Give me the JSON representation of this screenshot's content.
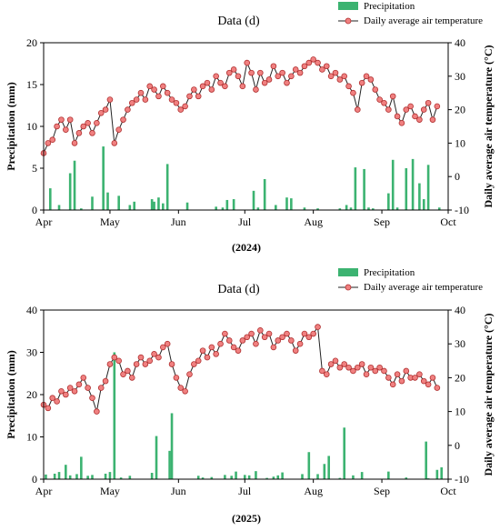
{
  "chart_data": [
    {
      "type": "bar+line",
      "title": "Data (d)",
      "year_caption": "(2024)",
      "ylabel_left": "Precipitation (mm)",
      "ylabel_right": "Daily average air temperature (°C)",
      "legend": [
        "Precipitation",
        "Daily average air temperature"
      ],
      "legend_position": "top-right",
      "x_ticks": [
        "Apr",
        "May",
        "Jun",
        "Jul",
        "Aug",
        "Sep",
        "Oct"
      ],
      "x_range": [
        "2024-04-01",
        "2024-10-01"
      ],
      "ylim_left": [
        0,
        20
      ],
      "yticks_left": [
        0,
        5,
        10,
        15,
        20
      ],
      "ylim_right": [
        -10,
        40
      ],
      "yticks_right": [
        -10,
        0,
        10,
        20,
        30,
        40
      ],
      "colors": {
        "bars": "#3cb371",
        "line": "#222222",
        "marker_fill": "#f08080",
        "marker_edge": "#b03030"
      },
      "precipitation": {
        "x": [
          "2024-04-04",
          "2024-04-08",
          "2024-04-13",
          "2024-04-15",
          "2024-04-18",
          "2024-04-23",
          "2024-04-28",
          "2024-04-30",
          "2024-05-05",
          "2024-05-10",
          "2024-05-12",
          "2024-05-20",
          "2024-05-21",
          "2024-05-23",
          "2024-05-25",
          "2024-05-27",
          "2024-06-05",
          "2024-06-18",
          "2024-06-21",
          "2024-06-23",
          "2024-06-26",
          "2024-07-05",
          "2024-07-07",
          "2024-07-10",
          "2024-07-15",
          "2024-07-20",
          "2024-07-22",
          "2024-07-28",
          "2024-08-03",
          "2024-08-13",
          "2024-08-16",
          "2024-08-18",
          "2024-08-20",
          "2024-08-24",
          "2024-08-26",
          "2024-08-28",
          "2024-09-04",
          "2024-09-06",
          "2024-09-08",
          "2024-09-12",
          "2024-09-15",
          "2024-09-18",
          "2024-09-20",
          "2024-09-22",
          "2024-09-27"
        ],
        "y": [
          2.6,
          0.6,
          4.4,
          5.9,
          0.2,
          1.6,
          7.6,
          2.1,
          1.7,
          0.6,
          1.0,
          1.3,
          1.0,
          1.5,
          0.8,
          5.5,
          0.9,
          0.4,
          0.3,
          1.2,
          1.3,
          2.3,
          0.3,
          3.7,
          0.6,
          1.5,
          1.4,
          0.3,
          0.2,
          0.2,
          0.6,
          0.3,
          5.1,
          4.9,
          0.3,
          0.2,
          2.0,
          6.0,
          0.3,
          5.0,
          6.1,
          3.2,
          1.3,
          5.4,
          0.3
        ]
      },
      "temperature": {
        "x": [
          "2024-04-01",
          "2024-04-03",
          "2024-04-05",
          "2024-04-07",
          "2024-04-09",
          "2024-04-11",
          "2024-04-13",
          "2024-04-15",
          "2024-04-17",
          "2024-04-19",
          "2024-04-21",
          "2024-04-23",
          "2024-04-25",
          "2024-04-27",
          "2024-04-29",
          "2024-05-01",
          "2024-05-03",
          "2024-05-05",
          "2024-05-07",
          "2024-05-09",
          "2024-05-11",
          "2024-05-13",
          "2024-05-15",
          "2024-05-17",
          "2024-05-19",
          "2024-05-21",
          "2024-05-23",
          "2024-05-25",
          "2024-05-27",
          "2024-05-29",
          "2024-05-31",
          "2024-06-02",
          "2024-06-04",
          "2024-06-06",
          "2024-06-08",
          "2024-06-10",
          "2024-06-12",
          "2024-06-14",
          "2024-06-16",
          "2024-06-18",
          "2024-06-20",
          "2024-06-22",
          "2024-06-24",
          "2024-06-26",
          "2024-06-28",
          "2024-06-30",
          "2024-07-02",
          "2024-07-04",
          "2024-07-06",
          "2024-07-08",
          "2024-07-10",
          "2024-07-12",
          "2024-07-14",
          "2024-07-16",
          "2024-07-18",
          "2024-07-20",
          "2024-07-22",
          "2024-07-24",
          "2024-07-26",
          "2024-07-28",
          "2024-07-30",
          "2024-08-01",
          "2024-08-03",
          "2024-08-05",
          "2024-08-07",
          "2024-08-09",
          "2024-08-11",
          "2024-08-13",
          "2024-08-15",
          "2024-08-17",
          "2024-08-19",
          "2024-08-21",
          "2024-08-23",
          "2024-08-25",
          "2024-08-27",
          "2024-08-29",
          "2024-08-31",
          "2024-09-02",
          "2024-09-04",
          "2024-09-06",
          "2024-09-08",
          "2024-09-10",
          "2024-09-12",
          "2024-09-14",
          "2024-09-16",
          "2024-09-18",
          "2024-09-20",
          "2024-09-22",
          "2024-09-24",
          "2024-09-26"
        ],
        "y": [
          7,
          10,
          11,
          15,
          17,
          14,
          17,
          10,
          13,
          15,
          16,
          13,
          16,
          19,
          20,
          23,
          10,
          14,
          17,
          20,
          22,
          23,
          25,
          23,
          27,
          26,
          24,
          27,
          25,
          23,
          22,
          20,
          21,
          24,
          26,
          24,
          27,
          28,
          26,
          30,
          28,
          27,
          31,
          32,
          30,
          27,
          34,
          31,
          26,
          31,
          28,
          29,
          33,
          30,
          31,
          28,
          30,
          32,
          31,
          33,
          34,
          35,
          34,
          32,
          33,
          30,
          31,
          29,
          30,
          27,
          25,
          20,
          28,
          30,
          29,
          26,
          23,
          22,
          20,
          24,
          18,
          16,
          20,
          21,
          18,
          17,
          20,
          22,
          17,
          21
        ]
      }
    },
    {
      "type": "bar+line",
      "title": "Data (d)",
      "year_caption": "(2025)",
      "ylabel_left": "Precipitation (mm)",
      "ylabel_right": "Daily average air temperature (°C)",
      "legend": [
        "Precipitation",
        "Daily average air temperature"
      ],
      "legend_position": "top-right",
      "x_ticks": [
        "Apr",
        "May",
        "Jun",
        "Jul",
        "Aug",
        "Sep",
        "Oct"
      ],
      "x_range": [
        "2025-04-01",
        "2025-10-01"
      ],
      "ylim_left": [
        0,
        40
      ],
      "yticks_left": [
        0,
        10,
        20,
        30,
        40
      ],
      "ylim_right": [
        -10,
        40
      ],
      "yticks_right": [
        -10,
        0,
        10,
        20,
        30,
        40
      ],
      "colors": {
        "bars": "#3cb371",
        "line": "#222222",
        "marker_fill": "#f08080",
        "marker_edge": "#b03030"
      },
      "precipitation": {
        "x": [
          "2025-04-02",
          "2025-04-06",
          "2025-04-08",
          "2025-04-11",
          "2025-04-13",
          "2025-04-16",
          "2025-04-18",
          "2025-04-21",
          "2025-04-23",
          "2025-04-29",
          "2025-05-01",
          "2025-05-03",
          "2025-05-06",
          "2025-05-10",
          "2025-05-20",
          "2025-05-22",
          "2025-05-28",
          "2025-05-29",
          "2025-06-10",
          "2025-06-12",
          "2025-06-16",
          "2025-06-22",
          "2025-06-25",
          "2025-06-27",
          "2025-07-01",
          "2025-07-03",
          "2025-07-06",
          "2025-07-11",
          "2025-07-14",
          "2025-07-16",
          "2025-07-18",
          "2025-07-27",
          "2025-07-30",
          "2025-08-03",
          "2025-08-06",
          "2025-08-08",
          "2025-08-13",
          "2025-08-15",
          "2025-08-19",
          "2025-08-23",
          "2025-09-04",
          "2025-09-12",
          "2025-09-21",
          "2025-09-22",
          "2025-09-26",
          "2025-09-28"
        ],
        "y": [
          1.1,
          1.3,
          1.7,
          3.4,
          0.9,
          1.2,
          5.3,
          0.8,
          1.0,
          1.3,
          1.7,
          30.0,
          0.4,
          0.8,
          1.5,
          10.2,
          6.7,
          15.6,
          0.8,
          0.4,
          0.5,
          1.0,
          0.8,
          1.8,
          1.0,
          0.9,
          1.9,
          0.3,
          0.6,
          0.9,
          1.6,
          1.2,
          6.4,
          1.2,
          3.6,
          5.5,
          0.3,
          12.2,
          0.9,
          1.7,
          1.8,
          0.4,
          8.9,
          0.2,
          2.2,
          2.8
        ]
      },
      "temperature": {
        "x": [
          "2025-04-01",
          "2025-04-03",
          "2025-04-05",
          "2025-04-07",
          "2025-04-09",
          "2025-04-11",
          "2025-04-13",
          "2025-04-15",
          "2025-04-17",
          "2025-04-19",
          "2025-04-21",
          "2025-04-23",
          "2025-04-25",
          "2025-04-27",
          "2025-04-29",
          "2025-05-01",
          "2025-05-03",
          "2025-05-05",
          "2025-05-07",
          "2025-05-09",
          "2025-05-11",
          "2025-05-13",
          "2025-05-15",
          "2025-05-17",
          "2025-05-19",
          "2025-05-21",
          "2025-05-23",
          "2025-05-25",
          "2025-05-27",
          "2025-05-29",
          "2025-05-31",
          "2025-06-02",
          "2025-06-04",
          "2025-06-06",
          "2025-06-08",
          "2025-06-10",
          "2025-06-12",
          "2025-06-14",
          "2025-06-16",
          "2025-06-18",
          "2025-06-20",
          "2025-06-22",
          "2025-06-24",
          "2025-06-26",
          "2025-06-28",
          "2025-06-30",
          "2025-07-02",
          "2025-07-04",
          "2025-07-06",
          "2025-07-08",
          "2025-07-10",
          "2025-07-12",
          "2025-07-14",
          "2025-07-16",
          "2025-07-18",
          "2025-07-20",
          "2025-07-22",
          "2025-07-24",
          "2025-07-26",
          "2025-07-28",
          "2025-07-30",
          "2025-08-01",
          "2025-08-03",
          "2025-08-05",
          "2025-08-07",
          "2025-08-09",
          "2025-08-11",
          "2025-08-13",
          "2025-08-15",
          "2025-08-17",
          "2025-08-19",
          "2025-08-21",
          "2025-08-23",
          "2025-08-25",
          "2025-08-27",
          "2025-08-29",
          "2025-08-31",
          "2025-09-02",
          "2025-09-04",
          "2025-09-06",
          "2025-09-08",
          "2025-09-10",
          "2025-09-12",
          "2025-09-14",
          "2025-09-16",
          "2025-09-18",
          "2025-09-20",
          "2025-09-22",
          "2025-09-24",
          "2025-09-26"
        ],
        "y": [
          12,
          11,
          14,
          13,
          16,
          15,
          17,
          16,
          18,
          20,
          17,
          14,
          10,
          17,
          19,
          24,
          26,
          25,
          21,
          22,
          20,
          24,
          26,
          24,
          25,
          27,
          26,
          29,
          30,
          24,
          20,
          17,
          16,
          21,
          24,
          25,
          28,
          26,
          29,
          27,
          30,
          33,
          31,
          29,
          28,
          31,
          32,
          33,
          30,
          34,
          32,
          33,
          29,
          31,
          32,
          33,
          31,
          28,
          30,
          33,
          32,
          33,
          35,
          22,
          21,
          24,
          25,
          23,
          24,
          23,
          22,
          23,
          24,
          21,
          23,
          22,
          23,
          22,
          20,
          18,
          21,
          19,
          22,
          20,
          20,
          21,
          19,
          18,
          20,
          17
        ]
      }
    }
  ]
}
